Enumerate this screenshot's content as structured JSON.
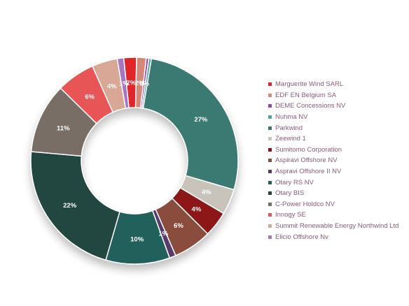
{
  "chart_data": {
    "type": "pie",
    "title": "",
    "legend_position": "right",
    "series": [
      {
        "name": "Marguerite Wind SARL",
        "percent": 2,
        "label": "2%",
        "color": "#e0262c"
      },
      {
        "name": "EDF EN Belgium SA",
        "percent": 1.5,
        "label": "2%",
        "color": "#d4887a"
      },
      {
        "name": "DEME Concessions NV",
        "percent": 0.4,
        "label": "0%",
        "color": "#9646a9"
      },
      {
        "name": "Nuhma NV",
        "percent": 0.4,
        "label": "",
        "color": "#4aa3a6"
      },
      {
        "name": "Parkwind",
        "percent": 27,
        "label": "27%",
        "color": "#3a7a72"
      },
      {
        "name": "Zeewind 1",
        "percent": 4,
        "label": "4%",
        "color": "#c8c4bc"
      },
      {
        "name": "Sumitomo Corporation",
        "percent": 4,
        "label": "4%",
        "color": "#8d1416"
      },
      {
        "name": "Aspiravi Offshore NV",
        "percent": 6,
        "label": "6%",
        "color": "#8a4d3d"
      },
      {
        "name": "Aspravi Offshore II NV",
        "percent": 1,
        "label": "1%",
        "color": "#593a6c"
      },
      {
        "name": "Otary RS NV",
        "percent": 10,
        "label": "10%",
        "color": "#21605c"
      },
      {
        "name": "Otary BIS",
        "percent": 22,
        "label": "22%",
        "color": "#24463f"
      },
      {
        "name": "C-Power Holdco NV",
        "percent": 11,
        "label": "11%",
        "color": "#786e66"
      },
      {
        "name": "Innogy SE",
        "percent": 6,
        "label": "6%",
        "color": "#e75456"
      },
      {
        "name": "Summit Renewable Energy Northwind Ltd",
        "percent": 4,
        "label": "4%",
        "color": "#d8a796"
      },
      {
        "name": "Elicio Offshore Nv",
        "percent": 1,
        "label": "1%",
        "color": "#a774c1"
      }
    ]
  }
}
